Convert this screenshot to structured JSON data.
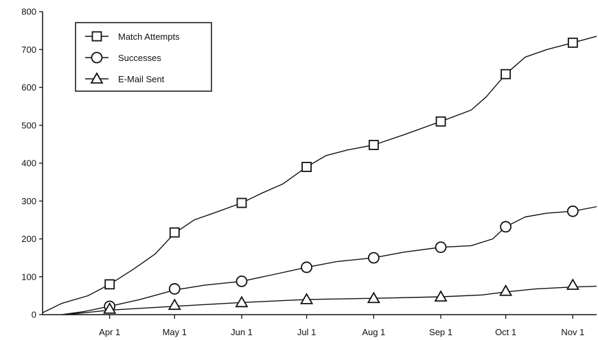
{
  "chart_data": {
    "type": "line",
    "title": "",
    "xlabel": "",
    "ylabel": "",
    "ylim": [
      0,
      800
    ],
    "yticks": [
      0,
      100,
      200,
      300,
      400,
      500,
      600,
      700,
      800
    ],
    "ytick_labels": [
      "0",
      "100",
      "200",
      "300",
      "400",
      "500",
      "600",
      "700",
      "800"
    ],
    "x_axis": {
      "kind": "date",
      "range": [
        "1997-03-01",
        "1997-11-12"
      ],
      "ticks": [
        "1997-04-01",
        "1997-05-01",
        "1997-06-01",
        "1997-07-01",
        "1997-08-01",
        "1997-09-01",
        "1997-10-01",
        "1997-11-01"
      ],
      "tick_labels": [
        "Apr 1",
        "May 1",
        "Jun 1",
        "Jul 1",
        "Aug 1",
        "Sep 1",
        "Oct 1",
        "Nov 1"
      ]
    },
    "grid": false,
    "legend": {
      "placement": "top-left",
      "boxed": true
    },
    "series": [
      {
        "name": "Match Attempts",
        "marker": "square",
        "curve": [
          [
            "1997-03-01",
            5
          ],
          [
            "1997-03-10",
            30
          ],
          [
            "1997-03-22",
            50
          ],
          [
            "1997-04-01",
            80
          ],
          [
            "1997-04-12",
            120
          ],
          [
            "1997-04-22",
            160
          ],
          [
            "1997-05-01",
            215
          ],
          [
            "1997-05-10",
            250
          ],
          [
            "1997-05-20",
            270
          ],
          [
            "1997-06-01",
            295
          ],
          [
            "1997-06-10",
            320
          ],
          [
            "1997-06-20",
            345
          ],
          [
            "1997-07-01",
            390
          ],
          [
            "1997-07-10",
            420
          ],
          [
            "1997-07-20",
            435
          ],
          [
            "1997-08-01",
            448
          ],
          [
            "1997-08-15",
            475
          ],
          [
            "1997-09-01",
            510
          ],
          [
            "1997-09-15",
            540
          ],
          [
            "1997-09-22",
            575
          ],
          [
            "1997-10-01",
            635
          ],
          [
            "1997-10-10",
            680
          ],
          [
            "1997-10-20",
            700
          ],
          [
            "1997-11-01",
            718
          ],
          [
            "1997-11-12",
            735
          ]
        ],
        "markers": [
          [
            "1997-04-01",
            80
          ],
          [
            "1997-05-01",
            217
          ],
          [
            "1997-06-01",
            295
          ],
          [
            "1997-07-01",
            390
          ],
          [
            "1997-08-01",
            448
          ],
          [
            "1997-09-01",
            510
          ],
          [
            "1997-10-01",
            635
          ],
          [
            "1997-11-01",
            718
          ]
        ]
      },
      {
        "name": "Successes",
        "marker": "circle",
        "curve": [
          [
            "1997-03-10",
            0
          ],
          [
            "1997-03-20",
            8
          ],
          [
            "1997-04-01",
            22
          ],
          [
            "1997-04-15",
            40
          ],
          [
            "1997-05-01",
            65
          ],
          [
            "1997-05-15",
            78
          ],
          [
            "1997-06-01",
            88
          ],
          [
            "1997-06-15",
            105
          ],
          [
            "1997-07-01",
            125
          ],
          [
            "1997-07-15",
            140
          ],
          [
            "1997-08-01",
            150
          ],
          [
            "1997-08-15",
            165
          ],
          [
            "1997-09-01",
            178
          ],
          [
            "1997-09-15",
            182
          ],
          [
            "1997-09-25",
            200
          ],
          [
            "1997-10-01",
            232
          ],
          [
            "1997-10-10",
            258
          ],
          [
            "1997-10-20",
            268
          ],
          [
            "1997-11-01",
            273
          ],
          [
            "1997-11-12",
            285
          ]
        ],
        "markers": [
          [
            "1997-04-01",
            22
          ],
          [
            "1997-05-01",
            68
          ],
          [
            "1997-06-01",
            88
          ],
          [
            "1997-07-01",
            125
          ],
          [
            "1997-08-01",
            150
          ],
          [
            "1997-09-01",
            178
          ],
          [
            "1997-10-01",
            232
          ],
          [
            "1997-11-01",
            273
          ]
        ]
      },
      {
        "name": "E-Mail Sent",
        "marker": "triangle",
        "curve": [
          [
            "1997-03-12",
            0
          ],
          [
            "1997-04-01",
            12
          ],
          [
            "1997-05-01",
            22
          ],
          [
            "1997-06-01",
            32
          ],
          [
            "1997-07-01",
            40
          ],
          [
            "1997-08-01",
            43
          ],
          [
            "1997-09-01",
            47
          ],
          [
            "1997-09-20",
            52
          ],
          [
            "1997-10-01",
            60
          ],
          [
            "1997-10-15",
            68
          ],
          [
            "1997-11-01",
            73
          ],
          [
            "1997-11-12",
            75
          ]
        ],
        "markers": [
          [
            "1997-04-01",
            15
          ],
          [
            "1997-05-01",
            25
          ],
          [
            "1997-06-01",
            32
          ],
          [
            "1997-07-01",
            40
          ],
          [
            "1997-08-01",
            43
          ],
          [
            "1997-09-01",
            47
          ],
          [
            "1997-10-01",
            62
          ],
          [
            "1997-11-01",
            78
          ]
        ]
      }
    ]
  }
}
